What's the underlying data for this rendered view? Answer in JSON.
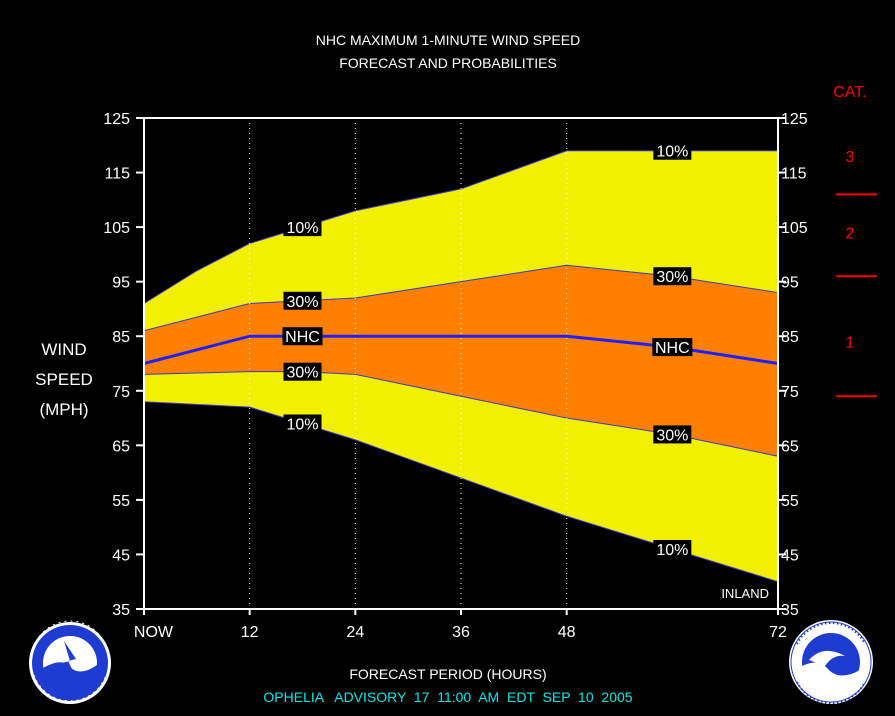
{
  "title_line1": "NHC MAXIMUM 1-MINUTE WIND SPEED",
  "title_line2": "FORECAST AND PROBABILITIES",
  "cat_header": "CAT.",
  "ylabel": [
    "WIND",
    "SPEED",
    "(MPH)"
  ],
  "xlabel": "FORECAST PERIOD (HOURS)",
  "advisory": "OPHELIA   ADVISORY  17  11:00  AM  EDT  SEP  10  2005",
  "inland_label": "INLAND",
  "colors": {
    "background": "#000000",
    "band_outer": "#f0f000",
    "band_inner": "#ff8000",
    "forecast_line": "#2020ff",
    "category": "#ff0000",
    "advisory_text": "#00e8e8",
    "axes": "#ffffff"
  },
  "logos": {
    "left": "NOAA National Weather Service seal",
    "right": "NOAA seal"
  },
  "chart_data": {
    "type": "area",
    "x_ticks": [
      {
        "value": 0,
        "label": "NOW"
      },
      {
        "value": 12,
        "label": "12"
      },
      {
        "value": 24,
        "label": "24"
      },
      {
        "value": 36,
        "label": "36"
      },
      {
        "value": 48,
        "label": "48"
      },
      {
        "value": 72,
        "label": "72"
      }
    ],
    "xlim": [
      0,
      72
    ],
    "ylim": [
      35,
      125
    ],
    "y_ticks": [
      "125",
      "115",
      "105",
      "95",
      "85",
      "75",
      "65",
      "55",
      "45",
      "35"
    ],
    "grid": "dotted vertical at 12, 24, 36, 48",
    "series": [
      {
        "name": "10%",
        "band": "upper",
        "x": [
          0,
          6,
          12,
          18,
          24,
          36,
          48,
          60,
          72
        ],
        "values": [
          91,
          97,
          102,
          105,
          108,
          112,
          119,
          119,
          119
        ]
      },
      {
        "name": "30%",
        "band": "upper",
        "x": [
          0,
          12,
          18,
          24,
          36,
          48,
          60,
          72
        ],
        "values": [
          86,
          91,
          91.5,
          92,
          95,
          98,
          96,
          93
        ]
      },
      {
        "name": "NHC",
        "band": "forecast",
        "x": [
          0,
          12,
          18,
          24,
          36,
          48,
          60,
          72
        ],
        "values": [
          80,
          85,
          85,
          85,
          85,
          85,
          83,
          80
        ]
      },
      {
        "name": "30%",
        "band": "lower",
        "x": [
          0,
          12,
          18,
          24,
          36,
          48,
          60,
          72
        ],
        "values": [
          78,
          78.5,
          78.5,
          78,
          74,
          70,
          67,
          63
        ]
      },
      {
        "name": "10%",
        "band": "lower",
        "x": [
          0,
          12,
          18,
          24,
          36,
          48,
          60,
          72
        ],
        "values": [
          73,
          72,
          69,
          66,
          59,
          52,
          46,
          40
        ]
      }
    ],
    "curve_labels": [
      {
        "text": "10%",
        "x": 18,
        "y": 105
      },
      {
        "text": "30%",
        "x": 18,
        "y": 91.5
      },
      {
        "text": "NHC",
        "x": 18,
        "y": 85
      },
      {
        "text": "30%",
        "x": 18,
        "y": 78.5
      },
      {
        "text": "10%",
        "x": 18,
        "y": 69
      },
      {
        "text": "10%",
        "x": 60,
        "y": 119
      },
      {
        "text": "30%",
        "x": 60,
        "y": 96
      },
      {
        "text": "NHC",
        "x": 60,
        "y": 83
      },
      {
        "text": "30%",
        "x": 60,
        "y": 67
      },
      {
        "text": "10%",
        "x": 60,
        "y": 46
      }
    ],
    "categories": [
      {
        "label": "3",
        "y": 118
      },
      {
        "label": "2",
        "y": 104
      },
      {
        "label": "1",
        "y": 84
      }
    ],
    "category_thresholds": [
      111,
      96,
      74
    ]
  }
}
